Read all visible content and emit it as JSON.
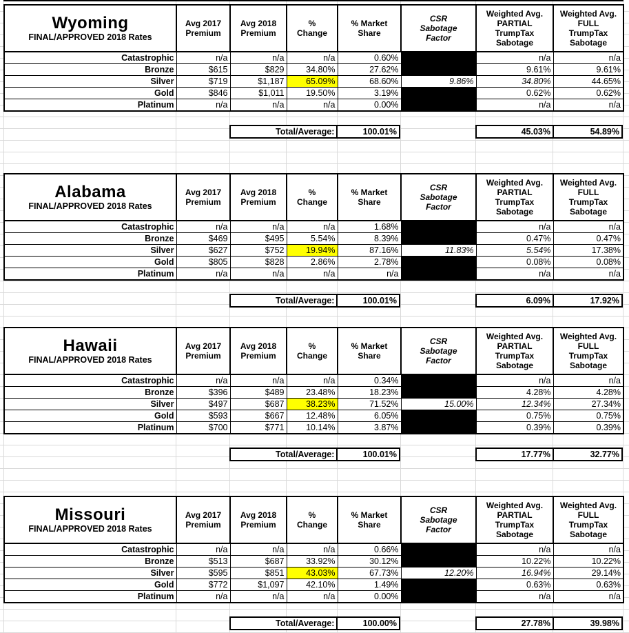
{
  "colors": {
    "green_header": "#ccf2cc",
    "yellow_header": "#ffff9e",
    "highlight": "#ffff00",
    "gridline": "#d9d9d9",
    "marker_green": "#1e7b1e"
  },
  "headers": {
    "avg2017": [
      "Avg 2017",
      "Premium"
    ],
    "avg2018": [
      "Avg 2018",
      "Premium"
    ],
    "change": [
      "%",
      "Change"
    ],
    "share": [
      "% Market",
      "Share"
    ],
    "csr": [
      "CSR",
      "Sabotage",
      "Factor"
    ],
    "partial": [
      "Weighted Avg.",
      "PARTIAL",
      "TrumpTax",
      "Sabotage"
    ],
    "full": [
      "Weighted Avg.",
      "FULL",
      "TrumpTax",
      "Sabotage"
    ]
  },
  "states": [
    {
      "name": "Wyoming",
      "subtitle": "FINAL/APPROVED 2018 Rates",
      "rows": [
        {
          "label": "Catastrophic",
          "avg2017": "n/a",
          "avg2018": "n/a",
          "change": "n/a",
          "share": "0.60%",
          "csr": "",
          "partial": "n/a",
          "full": "n/a",
          "csr_black": true,
          "silver": false,
          "marker": false
        },
        {
          "label": "Bronze",
          "avg2017": "$615",
          "avg2018": "$829",
          "change": "34.80%",
          "share": "27.62%",
          "csr": "",
          "partial": "9.61%",
          "full": "9.61%",
          "csr_black": true,
          "silver": false,
          "marker": false
        },
        {
          "label": "Silver",
          "avg2017": "$719",
          "avg2018": "$1,187",
          "change": "65.09%",
          "share": "68.60%",
          "csr": "9.86%",
          "partial": "34.80%",
          "full": "44.65%",
          "csr_black": false,
          "silver": true,
          "marker": false
        },
        {
          "label": "Gold",
          "avg2017": "$846",
          "avg2018": "$1,011",
          "change": "19.50%",
          "share": "3.19%",
          "csr": "",
          "partial": "0.62%",
          "full": "0.62%",
          "csr_black": true,
          "silver": false,
          "marker": false
        },
        {
          "label": "Platinum",
          "avg2017": "n/a",
          "avg2018": "n/a",
          "change": "n/a",
          "share": "0.00%",
          "csr": "",
          "partial": "n/a",
          "full": "n/a",
          "csr_black": true,
          "silver": false,
          "marker": false
        }
      ],
      "total_label": "Total/Average:",
      "total_share": "100.01%",
      "total_partial": "45.03%",
      "total_full": "54.89%"
    },
    {
      "name": "Alabama",
      "subtitle": "FINAL/APPROVED 2018 Rates",
      "rows": [
        {
          "label": "Catastrophic",
          "avg2017": "n/a",
          "avg2018": "n/a",
          "change": "n/a",
          "share": "1.68%",
          "csr": "",
          "partial": "n/a",
          "full": "n/a",
          "csr_black": true,
          "silver": false,
          "marker": false
        },
        {
          "label": "Bronze",
          "avg2017": "$469",
          "avg2018": "$495",
          "change": "5.54%",
          "share": "8.39%",
          "csr": "",
          "partial": "0.47%",
          "full": "0.47%",
          "csr_black": true,
          "silver": false,
          "marker": false
        },
        {
          "label": "Silver",
          "avg2017": "$627",
          "avg2018": "$752",
          "change": "19.94%",
          "share": "87.16%",
          "csr": "11.83%",
          "partial": "5.54%",
          "full": "17.38%",
          "csr_black": false,
          "silver": true,
          "marker": false
        },
        {
          "label": "Gold",
          "avg2017": "$805",
          "avg2018": "$828",
          "change": "2.86%",
          "share": "2.78%",
          "csr": "",
          "partial": "0.08%",
          "full": "0.08%",
          "csr_black": true,
          "silver": false,
          "marker": false
        },
        {
          "label": "Platinum",
          "avg2017": "n/a",
          "avg2018": "n/a",
          "change": "n/a",
          "share": "n/a",
          "csr": "",
          "partial": "n/a",
          "full": "n/a",
          "csr_black": true,
          "silver": false,
          "marker": false
        }
      ],
      "total_label": "Total/Average:",
      "total_share": "100.01%",
      "total_partial": "6.09%",
      "total_full": "17.92%"
    },
    {
      "name": "Hawaii",
      "subtitle": "FINAL/APPROVED 2018 Rates",
      "rows": [
        {
          "label": "Catastrophic",
          "avg2017": "n/a",
          "avg2018": "n/a",
          "change": "n/a",
          "share": "0.34%",
          "csr": "",
          "partial": "n/a",
          "full": "n/a",
          "csr_black": true,
          "silver": false,
          "marker": false
        },
        {
          "label": "Bronze",
          "avg2017": "$396",
          "avg2018": "$489",
          "change": "23.48%",
          "share": "18.23%",
          "csr": "",
          "partial": "4.28%",
          "full": "4.28%",
          "csr_black": true,
          "silver": false,
          "marker": false
        },
        {
          "label": "Silver",
          "avg2017": "$497",
          "avg2018": "$687",
          "change": "38.23%",
          "share": "71.52%",
          "csr": "15.00%",
          "partial": "12.34%",
          "full": "27.34%",
          "csr_black": false,
          "silver": true,
          "marker": false
        },
        {
          "label": "Gold",
          "avg2017": "$593",
          "avg2018": "$667",
          "change": "12.48%",
          "share": "6.05%",
          "csr": "",
          "partial": "0.75%",
          "full": "0.75%",
          "csr_black": true,
          "silver": false,
          "marker": false
        },
        {
          "label": "Platinum",
          "avg2017": "$700",
          "avg2018": "$771",
          "change": "10.14%",
          "share": "3.87%",
          "csr": "",
          "partial": "0.39%",
          "full": "0.39%",
          "csr_black": true,
          "silver": false,
          "marker": false
        }
      ],
      "total_label": "Total/Average:",
      "total_share": "100.01%",
      "total_partial": "17.77%",
      "total_full": "32.77%"
    },
    {
      "name": "Missouri",
      "subtitle": "FINAL/APPROVED 2018 Rates",
      "rows": [
        {
          "label": "Catastrophic",
          "avg2017": "n/a",
          "avg2018": "n/a",
          "change": "n/a",
          "share": "0.66%",
          "csr": "",
          "partial": "n/a",
          "full": "n/a",
          "csr_black": true,
          "silver": false,
          "marker": false
        },
        {
          "label": "Bronze",
          "avg2017": "$513",
          "avg2018": "$687",
          "change": "33.92%",
          "share": "30.12%",
          "csr": "",
          "partial": "10.22%",
          "full": "10.22%",
          "csr_black": true,
          "silver": false,
          "marker": false
        },
        {
          "label": "Silver",
          "avg2017": "$595",
          "avg2018": "$851",
          "change": "43.03%",
          "share": "67.73%",
          "csr": "12.20%",
          "partial": "16.94%",
          "full": "29.14%",
          "csr_black": false,
          "silver": true,
          "marker": true
        },
        {
          "label": "Gold",
          "avg2017": "$772",
          "avg2018": "$1,097",
          "change": "42.10%",
          "share": "1.49%",
          "csr": "",
          "partial": "0.63%",
          "full": "0.63%",
          "csr_black": true,
          "silver": false,
          "marker": false
        },
        {
          "label": "Platinum",
          "avg2017": "n/a",
          "avg2018": "n/a",
          "change": "n/a",
          "share": "0.00%",
          "csr": "",
          "partial": "n/a",
          "full": "n/a",
          "csr_black": true,
          "silver": false,
          "marker": false
        }
      ],
      "total_label": "Total/Average:",
      "total_share": "100.00%",
      "total_partial": "27.78%",
      "total_full": "39.98%"
    }
  ]
}
